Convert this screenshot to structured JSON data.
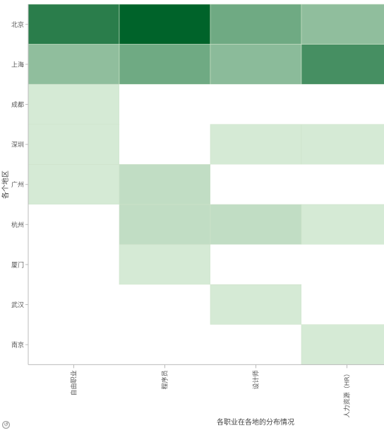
{
  "chart_data": {
    "type": "heatmap",
    "title": "",
    "xlabel": "各职业在各地的分布情况",
    "ylabel": "各个地区",
    "categories": [
      "自由职业",
      "程序员",
      "设计师",
      "人力资源（HR）"
    ],
    "rows": [
      "北京",
      "上海",
      "成都",
      "深圳",
      "广州",
      "杭州",
      "厦门",
      "武汉",
      "南京"
    ],
    "values": [
      [
        0.82,
        1.0,
        0.52,
        0.38
      ],
      [
        0.38,
        0.52,
        0.4,
        0.7
      ],
      [
        0.08,
        0.0,
        0.0,
        0.0
      ],
      [
        0.08,
        0.0,
        0.08,
        0.08
      ],
      [
        0.08,
        0.17,
        0.0,
        0.0
      ],
      [
        0.0,
        0.17,
        0.17,
        0.08
      ],
      [
        0.0,
        0.08,
        0.0,
        0.0
      ],
      [
        0.0,
        0.0,
        0.08,
        0.0
      ],
      [
        0.0,
        0.0,
        0.0,
        0.08
      ]
    ],
    "color_scale": {
      "low": "#e8f6e4",
      "high": "#00632a"
    },
    "empty_color": "#ffffff",
    "grid": false,
    "legend": "none"
  },
  "icons": {
    "corner": "reset-icon"
  }
}
